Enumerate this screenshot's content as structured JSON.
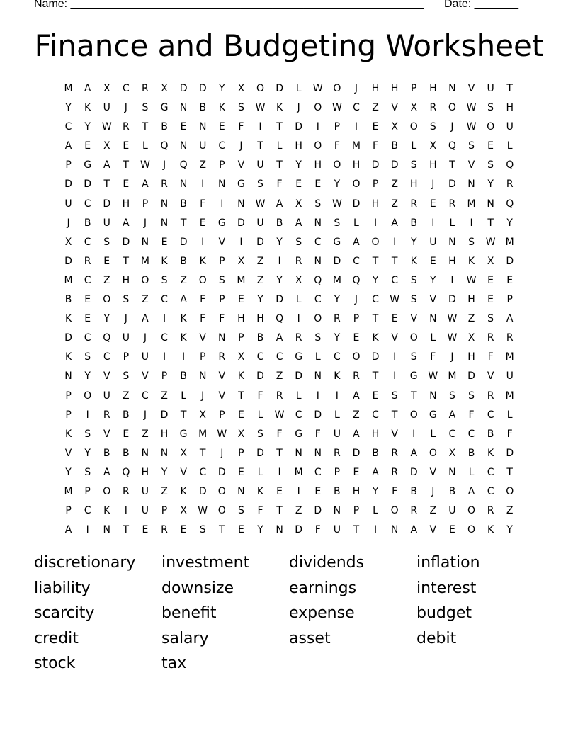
{
  "header": {
    "name_label": "Name: ________________________________________________________",
    "date_label": "Date: _______"
  },
  "title": "Finance and Budgeting Worksheet",
  "grid_rows": [
    "MAXCRXDDYXODLWOJHHPHNVUT",
    "YKUJSGNBKSWKJOWCZVXROWSH",
    "CYWRTBENEFITDIPIEXOSJWOU",
    "AEXELQNUCJTLHOFMFBLXQSEL",
    "PGATWJQZPVUTYHOHDDSHTVSQ",
    "DDTEARNINGSFEEYOPZHJDNYR",
    "UCDHPNBFINWAXSWDHZRERMNQ",
    "JBUAJNTEGDUBANSLIABILITY",
    "XCSDNEDIVIDYSCGAOIYUNSWM",
    "DRETMKBKPXZIRNDCTTKEHKXD",
    "MCZHOSZOSMZYXQMQYCSYIWEE",
    "BEOSZCAFPEYDLCYJCWSVDHEP",
    "KEYJAIKFFHHQIORPTEVNWZSA",
    "DCQUJCKVNPBARSYEKVOLWXRR",
    "KSCPUIIPRXCCGLCODISFJHFM",
    "NYVSVPBNVKDZDNKRTIGWMDVU",
    "POUZCZLJVTFRLIIAESTNSSRM",
    "PIRBJDTXPELWCDLZCTOGAFCL",
    "KSVEZHGMWXSFGFUAHVILCCBF",
    "VYBBNNXTJPDTNNRDBRAOXBKD",
    "YSAQHYVCDELIMCPEARDVNLCT",
    "MPORUZKDONKEIEBHYFBJBACO",
    "PCKIUPXWOSFTZDNPLORZUORZ",
    "AINTERESTEYNDFUTINAVEOKY"
  ],
  "word_list": [
    "discretionary",
    "investment",
    "dividends",
    "inflation",
    "liability",
    "downsize",
    "earnings",
    "interest",
    "scarcity",
    "benefit",
    "expense",
    "budget",
    "credit",
    "salary",
    "asset",
    "debit",
    "stock",
    "tax"
  ]
}
